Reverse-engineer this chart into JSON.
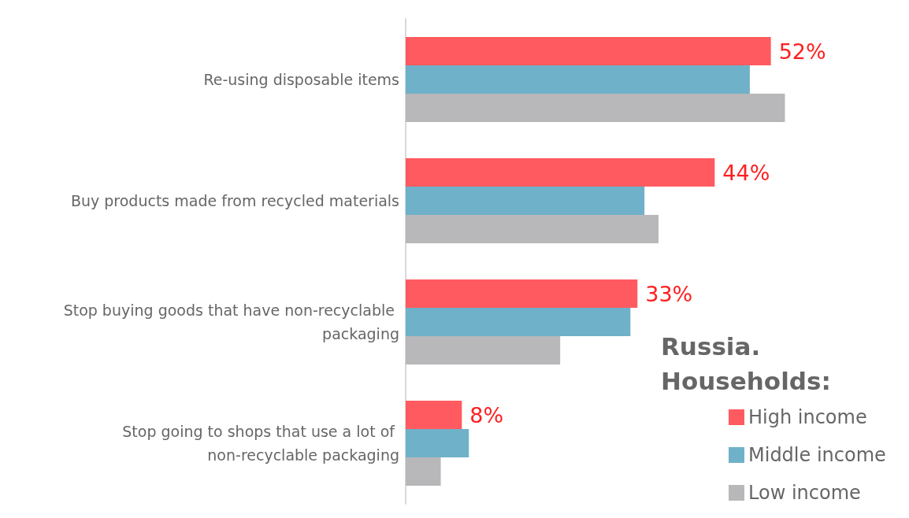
{
  "chart_data": {
    "type": "bar",
    "orientation": "horizontal",
    "legend_title": "Russia. Households:",
    "legend": "bottom right",
    "grid": false,
    "categories": [
      "Re-using disposable items",
      "Buy products made from recycled materials",
      "Stop buying goods that have non-recyclable packaging",
      "Stop going to shops that use a lot of non-recyclable packaging"
    ],
    "series": [
      {
        "name": "High income",
        "color": "#ff5a5f",
        "values": [
          52,
          44,
          33,
          8
        ],
        "value_labels": [
          "52%",
          "44%",
          "33%",
          "8%"
        ]
      },
      {
        "name": "Middle income",
        "color": "#6fb1c8",
        "values": [
          49,
          34,
          32,
          9
        ]
      },
      {
        "name": "Low income",
        "color": "#b8b8ba",
        "values": [
          54,
          36,
          22,
          5
        ]
      }
    ]
  }
}
